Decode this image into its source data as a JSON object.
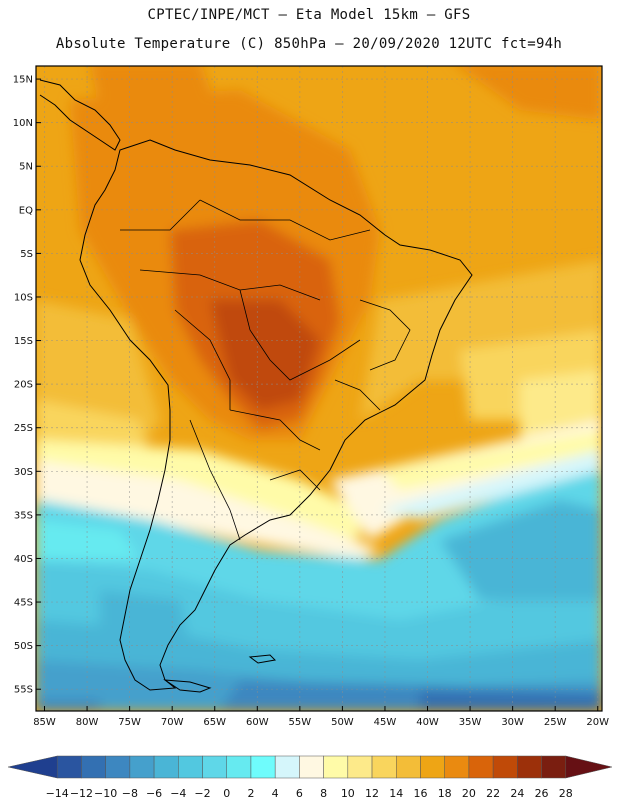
{
  "header": {
    "line1": "CPTEC/INPE/MCT –  Eta Model 15km – GFS",
    "line2": "Absolute Temperature (C) 850hPa – 20/09/2020 12UTC fct=94h"
  },
  "map": {
    "lat_ticks": [
      "15N",
      "10N",
      "5N",
      "EQ",
      "5S",
      "10S",
      "15S",
      "20S",
      "25S",
      "30S",
      "35S",
      "40S",
      "45S",
      "50S",
      "55S"
    ],
    "lon_ticks": [
      "85W",
      "80W",
      "75W",
      "70W",
      "65W",
      "60W",
      "55W",
      "50W",
      "45W",
      "40W",
      "35W",
      "30W",
      "25W",
      "20W"
    ],
    "extent": {
      "lon_min": -86,
      "lon_max": -19.5,
      "lat_min": -57.5,
      "lat_max": 16.5
    }
  },
  "colorbar": {
    "labels": [
      "-14",
      "-12",
      "-10",
      "-8",
      "-6",
      "-4",
      "-2",
      "0",
      "2",
      "4",
      "6",
      "8",
      "10",
      "12",
      "14",
      "16",
      "18",
      "20",
      "22",
      "24",
      "26",
      "28"
    ],
    "colors": [
      "#1f3f8f",
      "#2a55a0",
      "#3370b2",
      "#3d87c0",
      "#45a0cc",
      "#4ab5d6",
      "#52c8e0",
      "#5fd7e8",
      "#66eaf0",
      "#6ffcfc",
      "#d5f6fb",
      "#fff8e2",
      "#fffba8",
      "#fdea8a",
      "#f9d55d",
      "#f3bd38",
      "#eea515",
      "#ea8a10",
      "#d9640a",
      "#c04a08",
      "#9c300a",
      "#7a1e10",
      "#661014"
    ]
  }
}
